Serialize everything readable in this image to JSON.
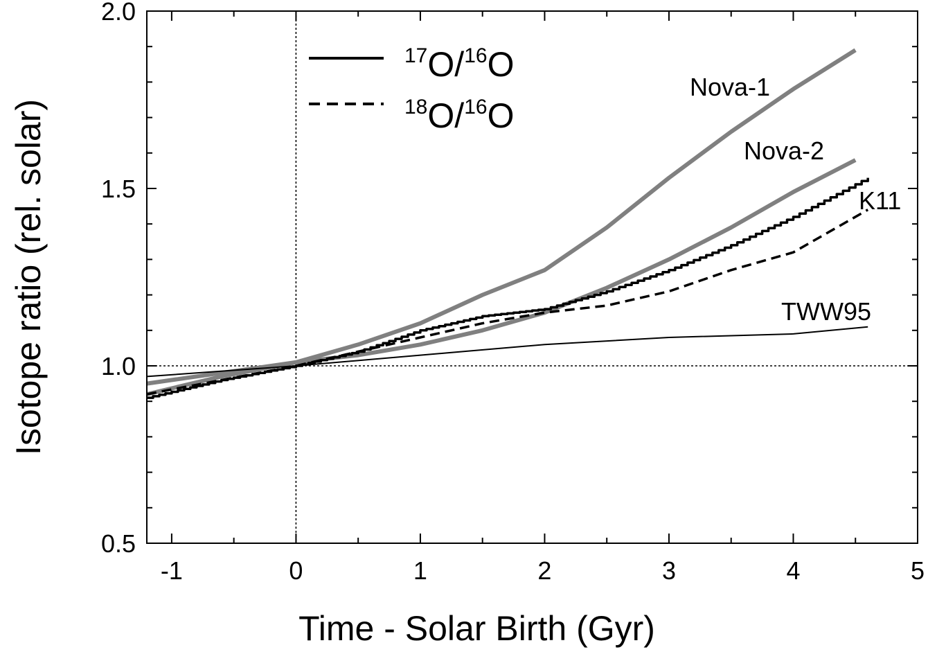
{
  "chart_data": {
    "type": "line",
    "xlabel": "Time - Solar Birth (Gyr)",
    "ylabel": "Isotope ratio (rel. solar)",
    "xlim": [
      -1.2,
      5
    ],
    "ylim": [
      0.5,
      2.0
    ],
    "xticks": [
      -1,
      0,
      1,
      2,
      3,
      4,
      5
    ],
    "yticks": [
      0.5,
      1.0,
      1.5,
      2.0
    ],
    "ytick_labels": [
      "0.5",
      "1.0",
      "1.5",
      "2.0"
    ],
    "grid": false,
    "reference_lines": {
      "x": 0,
      "y": 1.0
    },
    "legend": {
      "placement": "top-left",
      "entries": [
        {
          "num_mass": "17",
          "num_el": "O",
          "sep": "/",
          "den_mass": "16",
          "den_el": "O",
          "style": "solid"
        },
        {
          "num_mass": "18",
          "num_el": "O",
          "sep": "/",
          "den_mass": "16",
          "den_el": "O",
          "style": "dashed"
        }
      ]
    },
    "curve_labels": [
      {
        "text": "Nova-1",
        "series": "Nova-1 17O/16O"
      },
      {
        "text": "Nova-2",
        "series": "Nova-2 17O/16O"
      },
      {
        "text": "K11",
        "series": "K11 17O/16O"
      },
      {
        "text": "TWW95",
        "series": "TWW95 17O/16O"
      }
    ],
    "colors": {
      "nova": "#808080",
      "model": "#000000"
    },
    "series": [
      {
        "style": "solid",
        "color": "#808080",
        "x": [
          -1.2,
          -0.6,
          0,
          0.5,
          1.0,
          1.5,
          2.0,
          2.5,
          3.0,
          3.5,
          4.0,
          4.5
        ],
        "y": [
          0.92,
          0.97,
          1.01,
          1.06,
          1.12,
          1.2,
          1.27,
          1.39,
          1.53,
          1.66,
          1.78,
          1.89
        ]
      },
      {
        "style": "solid",
        "color": "#808080",
        "x": [
          -1.2,
          -0.6,
          0,
          0.5,
          1.0,
          1.5,
          2.0,
          2.5,
          3.0,
          3.5,
          4.0,
          4.5
        ],
        "y": [
          0.95,
          0.98,
          1.01,
          1.03,
          1.06,
          1.1,
          1.15,
          1.22,
          1.3,
          1.39,
          1.49,
          1.58
        ]
      },
      {
        "style": "step",
        "color": "#000000",
        "x": [
          -1.2,
          -0.6,
          0,
          0.5,
          1.0,
          1.5,
          2.0,
          2.5,
          3.0,
          3.5,
          4.0,
          4.6
        ],
        "y": [
          0.91,
          0.96,
          1.0,
          1.04,
          1.1,
          1.14,
          1.16,
          1.21,
          1.27,
          1.34,
          1.42,
          1.53
        ]
      },
      {
        "style": "dashed",
        "color": "#000000",
        "x": [
          -1.2,
          -0.6,
          0,
          0.5,
          1.0,
          1.5,
          2.0,
          2.5,
          3.0,
          3.5,
          4.0,
          4.6
        ],
        "y": [
          0.92,
          0.96,
          1.0,
          1.04,
          1.08,
          1.12,
          1.15,
          1.17,
          1.21,
          1.27,
          1.32,
          1.44
        ]
      },
      {
        "style": "solid",
        "color": "#000000",
        "x": [
          -1.2,
          0,
          1.0,
          2.0,
          3.0,
          4.0,
          4.6
        ],
        "y": [
          0.97,
          1.0,
          1.03,
          1.06,
          1.08,
          1.09,
          1.11
        ]
      }
    ]
  }
}
